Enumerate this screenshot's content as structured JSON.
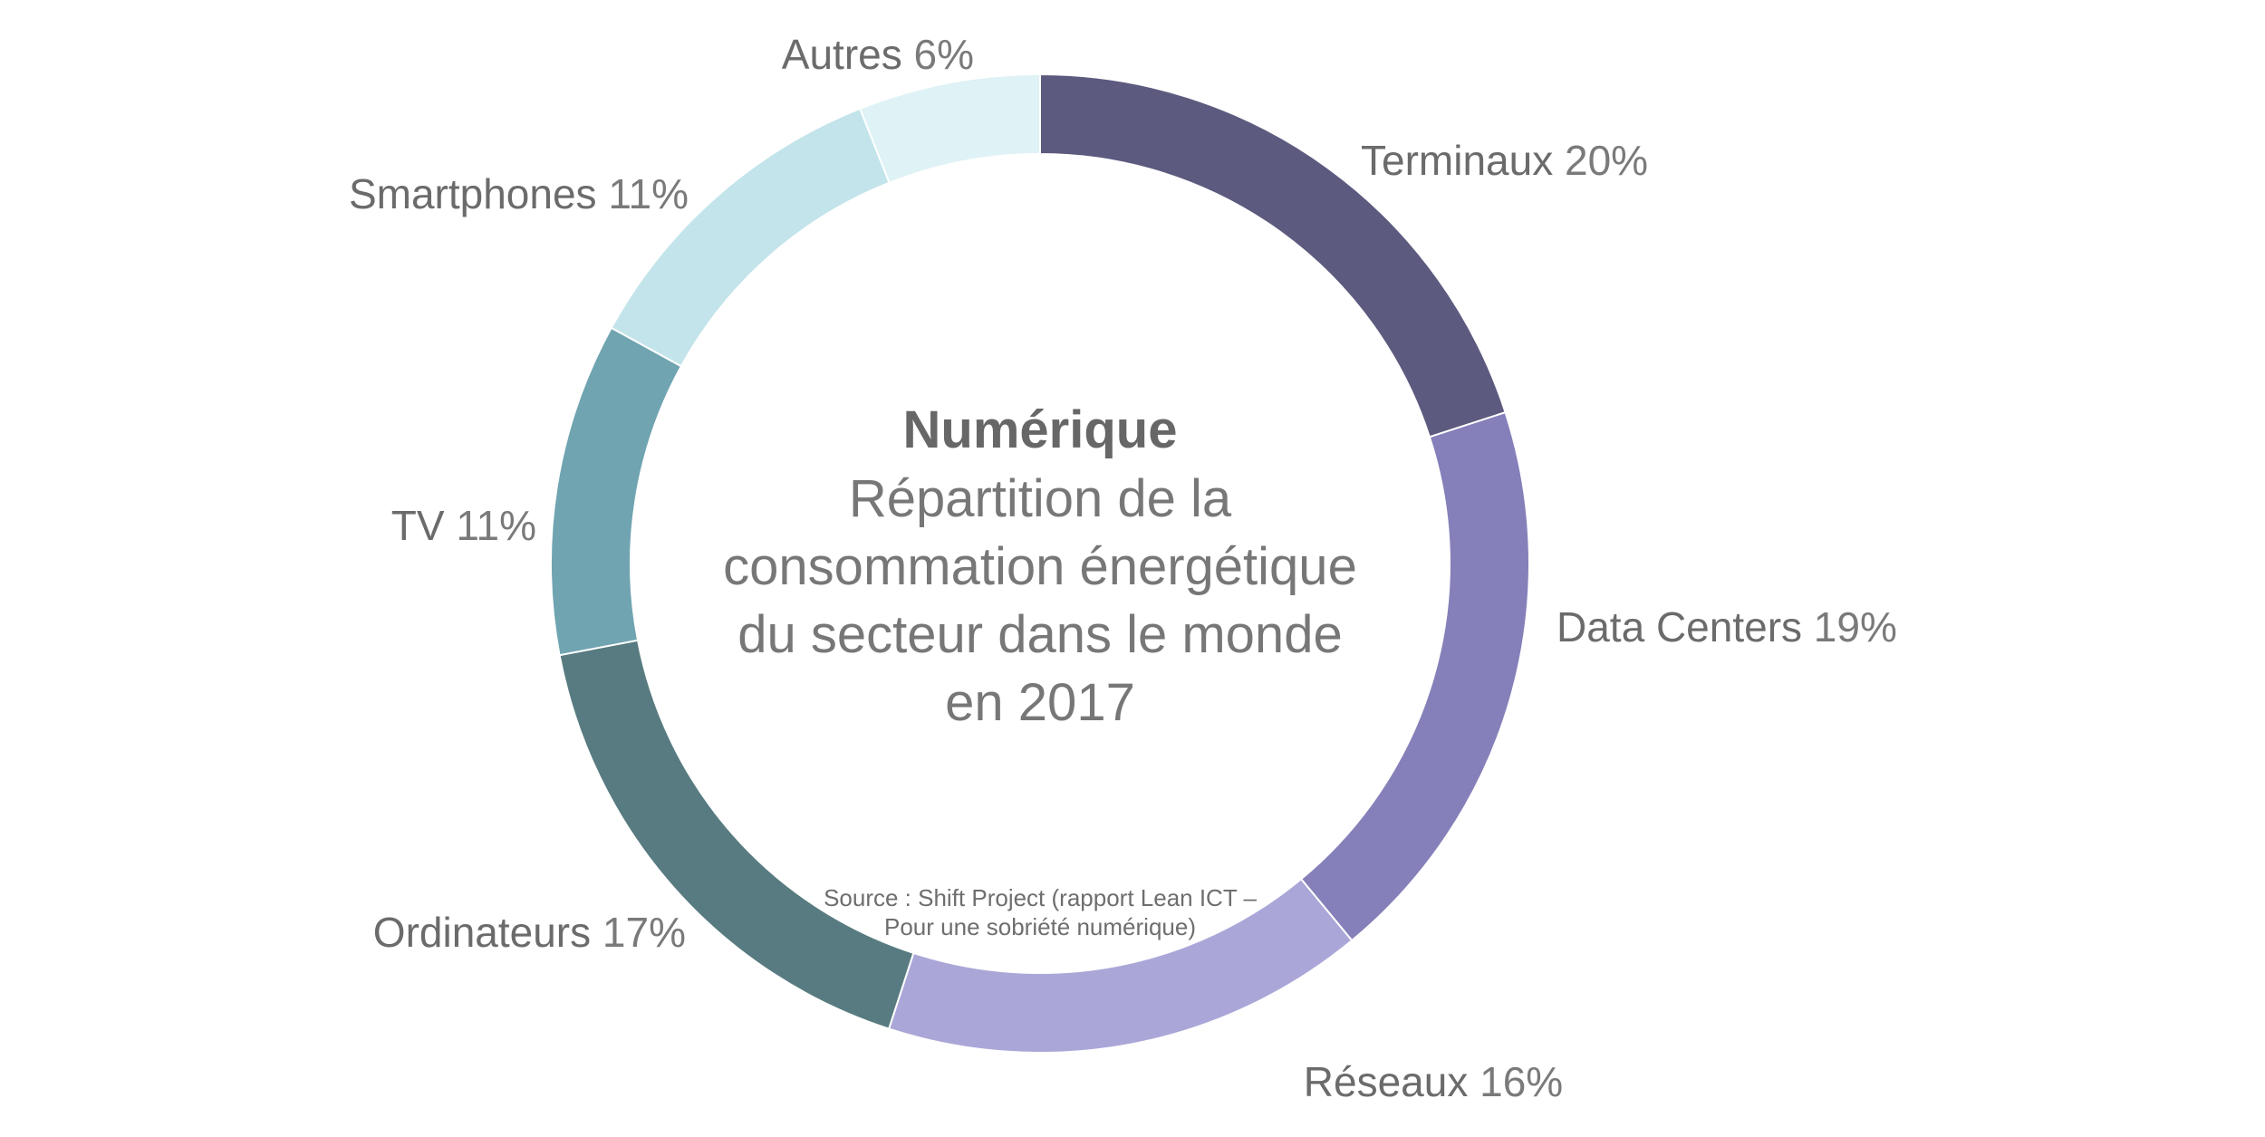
{
  "chart_data": {
    "type": "pie",
    "title": "Numérique",
    "subtitle_lines": [
      "Répartition de la",
      "consommation énergétique",
      "du secteur dans le monde",
      "en 2017"
    ],
    "source_lines": [
      "Source : Shift Project (rapport Lean ICT –",
      "Pour une sobriété numérique)"
    ],
    "labels": [
      "Terminaux",
      "Data Centers",
      "Réseaux",
      "Ordinateurs",
      "TV",
      "Smartphones",
      "Autres"
    ],
    "values": [
      20,
      19,
      16,
      17,
      11,
      11,
      6
    ],
    "value_labels": [
      "20%",
      "19%",
      "16%",
      "17%",
      "11%",
      "11%",
      "6%"
    ],
    "colors": [
      "#5c5a7e",
      "#8580b9",
      "#aaa7d8",
      "#577b80",
      "#70a4b1",
      "#c2e4ea",
      "#dff2f6"
    ],
    "donut": true,
    "legend": "none"
  }
}
